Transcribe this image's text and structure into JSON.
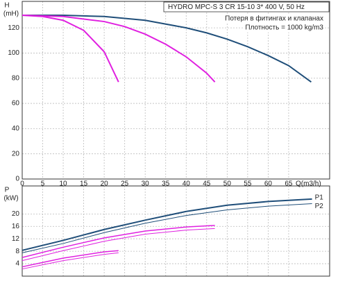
{
  "chart_data": [
    {
      "type": "line",
      "header": "HYDRO MPC-S 3 CR 15-10   3* 400 V, 50 Hz",
      "notes": [
        "Потеря в фитингах и клапанах",
        "Плотность = 1000 kg/m3"
      ],
      "y_label": "H",
      "y_unit": "(mH)",
      "x_label": "Q(m3/h)",
      "xlim": [
        0,
        75
      ],
      "xticks": [
        0,
        5,
        10,
        15,
        20,
        25,
        30,
        35,
        40,
        45,
        50,
        55,
        60,
        65
      ],
      "ylim": [
        0,
        141
      ],
      "yticks": [
        0,
        20,
        40,
        60,
        80,
        100,
        120
      ],
      "grid": true,
      "series": [
        {
          "color": "#1f4e79",
          "width": 2,
          "x": [
            0,
            10,
            20,
            30,
            40,
            45,
            50,
            55,
            60,
            65,
            70.5
          ],
          "values": [
            130,
            130,
            129,
            126,
            120,
            116,
            111,
            105,
            98,
            90,
            77
          ]
        },
        {
          "color": "#e020e0",
          "width": 2,
          "x": [
            0,
            10,
            20,
            25,
            30,
            35,
            40,
            45,
            47
          ],
          "values": [
            130,
            129,
            125,
            121,
            115,
            107,
            97,
            84,
            77
          ]
        },
        {
          "color": "#e020e0",
          "width": 2,
          "x": [
            0,
            5,
            10,
            15,
            20,
            23.5
          ],
          "values": [
            130,
            129,
            126,
            118,
            101,
            77
          ]
        }
      ]
    },
    {
      "type": "line",
      "y_label": "P",
      "y_unit": "(kW)",
      "xlim": [
        0,
        75
      ],
      "ylim": [
        0,
        29
      ],
      "yticks": [
        4,
        8,
        12,
        16,
        20
      ],
      "grid": true,
      "series": [
        {
          "name": "P1",
          "color": "#1f4e79",
          "width": 2,
          "x": [
            0,
            10,
            20,
            30,
            40,
            50,
            60,
            70.7
          ],
          "values": [
            8.3,
            11.5,
            15,
            18,
            20.8,
            22.8,
            24,
            24.8
          ]
        },
        {
          "name": "P2",
          "color": "#1f4e79",
          "width": 1,
          "x": [
            0,
            10,
            20,
            30,
            40,
            50,
            60,
            70.7
          ],
          "values": [
            7.5,
            10.5,
            14,
            17,
            19.5,
            21.3,
            22.5,
            23.3
          ]
        },
        {
          "color": "#e020e0",
          "width": 1.5,
          "x": [
            0,
            10,
            20,
            30,
            40,
            47
          ],
          "values": [
            6,
            9.3,
            12.3,
            14.5,
            15.8,
            16.3
          ]
        },
        {
          "color": "#e020e0",
          "width": 1,
          "x": [
            0,
            10,
            20,
            30,
            40,
            47
          ],
          "values": [
            5,
            8.2,
            11.2,
            13.5,
            14.8,
            15.3
          ]
        },
        {
          "color": "#e020e0",
          "width": 1.5,
          "x": [
            0,
            10,
            20,
            23.5
          ],
          "values": [
            3,
            5.8,
            7.8,
            8.2
          ]
        },
        {
          "color": "#e020e0",
          "width": 1,
          "x": [
            0,
            10,
            20,
            23.5
          ],
          "values": [
            2.3,
            5,
            7,
            7.5
          ]
        }
      ]
    }
  ]
}
